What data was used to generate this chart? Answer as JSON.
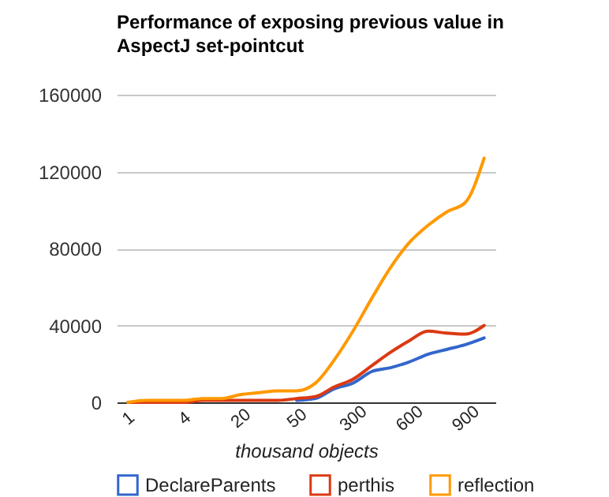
{
  "chart_data": {
    "type": "line",
    "title": "Performance of exposing previous value in AspectJ set-pointcut",
    "xlabel": "thousand objects",
    "categories": [
      "1",
      null,
      null,
      "4",
      null,
      null,
      "20",
      null,
      null,
      "50",
      null,
      null,
      "300",
      null,
      null,
      "600",
      null,
      null,
      "900",
      null
    ],
    "series": [
      {
        "name": "DeclareParents",
        "color": "#3366cc",
        "values": [
          null,
          null,
          null,
          null,
          null,
          null,
          null,
          null,
          null,
          1000,
          2000,
          7000,
          10000,
          16000,
          18000,
          21000,
          25000,
          27500,
          30000,
          33500
        ]
      },
      {
        "name": "perthis",
        "color": "#dc3912",
        "values": [
          0,
          0,
          0,
          0,
          1000,
          1000,
          1000,
          1000,
          1000,
          2000,
          3000,
          8000,
          12000,
          19000,
          26000,
          32000,
          37000,
          36000,
          35500,
          40000
        ]
      },
      {
        "name": "reflection",
        "color": "#ff9900",
        "values": [
          0,
          1000,
          1000,
          1000,
          2000,
          2000,
          4000,
          5000,
          6000,
          6000,
          10000,
          22000,
          37000,
          54000,
          70000,
          83000,
          92000,
          99000,
          104000,
          127000
        ]
      }
    ],
    "ylim": [
      0,
      160000
    ],
    "yticks": [
      0,
      40000,
      80000,
      120000,
      160000
    ],
    "grid": "y",
    "legend": "bottom",
    "marker": "none",
    "line_style": "solid"
  }
}
